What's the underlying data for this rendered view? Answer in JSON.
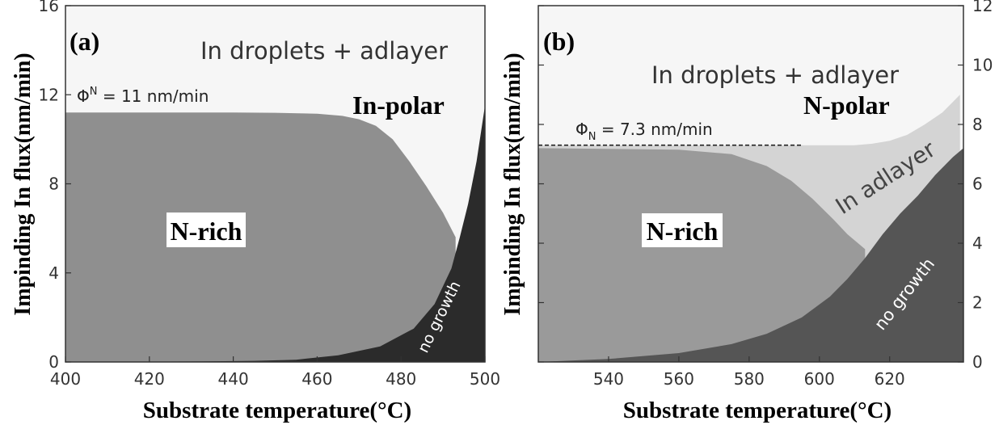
{
  "chart_data": [
    {
      "panel_label": "(a)",
      "type": "area",
      "x_range": [
        400,
        500
      ],
      "y_range": [
        0,
        16
      ],
      "xticks": [
        "400",
        "420",
        "440",
        "460",
        "480",
        "500"
      ],
      "yticks": [
        "0",
        "4",
        "8",
        "12",
        "16"
      ],
      "ylabel": "Impinding In flux(nm/min)",
      "xlabel": "Substrate temperature(°C)",
      "flux_sub": "Φ",
      "flux_sup": "N",
      "flux_rest": " = 11 nm/min",
      "region_labels": {
        "upper": "In droplets + adlayer",
        "polarity": "In-polar",
        "nrich": "N-rich",
        "nogrowth": "no growth"
      },
      "colors": {
        "upper": "#f6f6f6",
        "nrich": "#8f8f8f",
        "nogrowth": "#2b2b2b"
      },
      "series": {
        "nrich_upper": {
          "x": [
            400,
            420,
            440,
            450,
            460,
            466,
            470,
            474,
            478,
            482,
            486,
            490,
            493
          ],
          "y": [
            11.2,
            11.2,
            11.2,
            11.19,
            11.15,
            11.05,
            10.9,
            10.6,
            10.0,
            9.0,
            7.9,
            6.7,
            5.6
          ]
        },
        "nogrowth_boundary": {
          "x": [
            400,
            430,
            445,
            455,
            465,
            475,
            483,
            488,
            492,
            494,
            496,
            498,
            500
          ],
          "y": [
            0,
            0.02,
            0.05,
            0.1,
            0.3,
            0.7,
            1.5,
            2.6,
            4.2,
            5.6,
            7.1,
            9.0,
            11.5
          ]
        }
      }
    },
    {
      "panel_label": "(b)",
      "type": "area",
      "x_range": [
        520,
        641
      ],
      "y_range": [
        0,
        12
      ],
      "xticks": [
        "540",
        "560",
        "580",
        "600",
        "620"
      ],
      "yticks": [
        "0",
        "2",
        "4",
        "6",
        "8",
        "10",
        "12"
      ],
      "ylabel": "Impinding In flux(nm/min)",
      "xlabel": "Substrate temperature(°C)",
      "flux_sub_label": "Φ",
      "flux_subscript": "N",
      "flux_rest": " = 7.3 nm/min",
      "region_labels": {
        "upper": "In droplets + adlayer",
        "polarity": "N-polar",
        "adlayer": "In adlayer",
        "nrich": "N-rich",
        "nogrowth": "no growth"
      },
      "colors": {
        "upper": "#f6f6f6",
        "adlayer": "#d4d4d4",
        "nrich": "#9a9a9a",
        "nogrowth": "#555555"
      },
      "series": {
        "droplet_boundary": {
          "x": [
            520,
            560,
            600,
            610,
            615,
            620,
            625,
            630,
            635,
            640
          ],
          "y": [
            7.3,
            7.3,
            7.3,
            7.3,
            7.35,
            7.45,
            7.65,
            8.0,
            8.4,
            9.0
          ]
        },
        "nrich_upper": {
          "x": [
            520,
            560,
            575,
            585,
            592,
            598,
            604,
            608,
            611,
            613
          ],
          "y": [
            7.2,
            7.15,
            7.0,
            6.6,
            6.1,
            5.5,
            4.8,
            4.3,
            4.0,
            3.8
          ]
        },
        "nogrowth_boundary": {
          "x": [
            520,
            540,
            560,
            575,
            585,
            595,
            603,
            608,
            613,
            618,
            623,
            628,
            633,
            638,
            641
          ],
          "y": [
            0,
            0.1,
            0.3,
            0.6,
            0.95,
            1.5,
            2.2,
            2.8,
            3.5,
            4.3,
            5.0,
            5.6,
            6.3,
            6.9,
            7.2
          ]
        }
      }
    }
  ]
}
